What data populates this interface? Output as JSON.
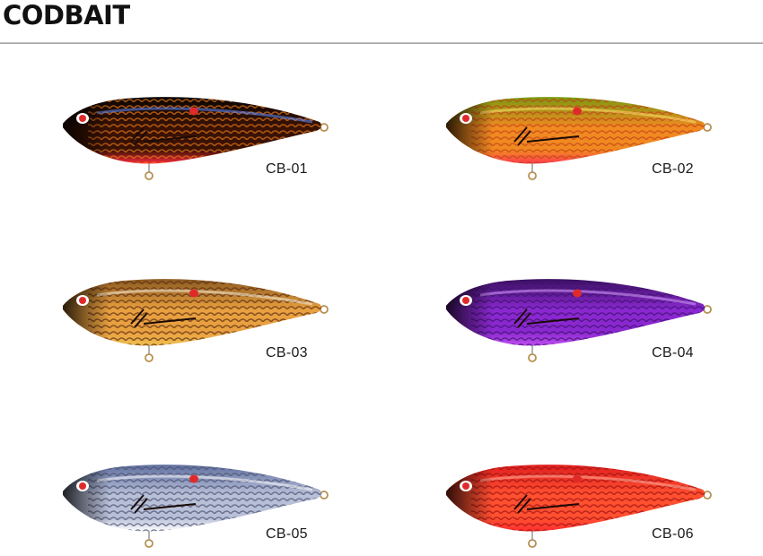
{
  "title": "CODBAIT",
  "products": [
    {
      "code": "CB-01",
      "colors": {
        "back": "#0a0604",
        "mid": "#3a1204",
        "belly": "#ff2a3c",
        "scale": "#e8781a",
        "sheen": "#5e8cff"
      }
    },
    {
      "code": "CB-02",
      "colors": {
        "back": "#7a9a10",
        "mid": "#f08a20",
        "belly": "#ff3a4e",
        "scale": "#c2421a",
        "sheen": "#ffe070"
      }
    },
    {
      "code": "CB-03",
      "colors": {
        "back": "#8a5a20",
        "mid": "#e8a040",
        "belly": "#f0c050",
        "scale": "#5a2a10",
        "sheen": "#f6f0e0"
      }
    },
    {
      "code": "CB-04",
      "colors": {
        "back": "#3a1060",
        "mid": "#8a28d0",
        "belly": "#c050f0",
        "scale": "#401070",
        "sheen": "#d8a0ff"
      }
    },
    {
      "code": "CB-05",
      "colors": {
        "back": "#6070a0",
        "mid": "#b8c0d8",
        "belly": "#ffffff",
        "scale": "#4a5070",
        "sheen": "#ffffff"
      }
    },
    {
      "code": "CB-06",
      "colors": {
        "back": "#e02020",
        "mid": "#ff5030",
        "belly": "#ff3030",
        "scale": "#a01010",
        "sheen": "#ffb0a0"
      }
    }
  ]
}
